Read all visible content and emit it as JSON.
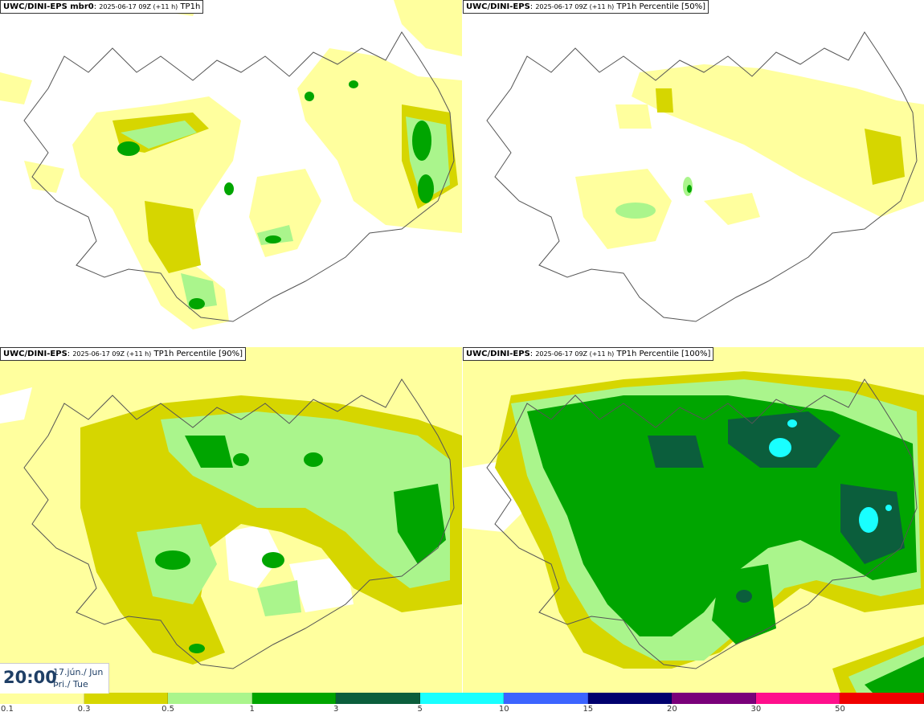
{
  "panels": [
    {
      "model": "UWC/DINI-EPS mbr0",
      "run": "2025-06-17 09Z (+11 h)",
      "field": "TP1h"
    },
    {
      "model": "UWC/DINI-EPS",
      "run": "2025-06-17 09Z (+11 h)",
      "field": "TP1h Percentile [50%]"
    },
    {
      "model": "UWC/DINI-EPS",
      "run": "2025-06-17 09Z (+11 h)",
      "field": "TP1h Percentile [90%]"
    },
    {
      "model": "UWC/DINI-EPS",
      "run": "2025-06-17 09Z (+11 h)",
      "field": "TP1h Percentile [100%]"
    }
  ],
  "timestamp": {
    "time": "20:00",
    "date": "17.jún./ Jun",
    "weekday": "Þri./ Tue"
  },
  "legend": {
    "ticks": [
      "0.1",
      "0.3",
      "0.5",
      "1",
      "3",
      "5",
      "10",
      "15",
      "20",
      "30",
      "50"
    ],
    "colors": [
      "#ffff9e",
      "#d6d600",
      "#aaf58c",
      "#00a500",
      "#0b5e3c",
      "#19ffff",
      "#3c64ff",
      "#00006e",
      "#7a007a",
      "#ff0f8c",
      "#f00000"
    ]
  }
}
